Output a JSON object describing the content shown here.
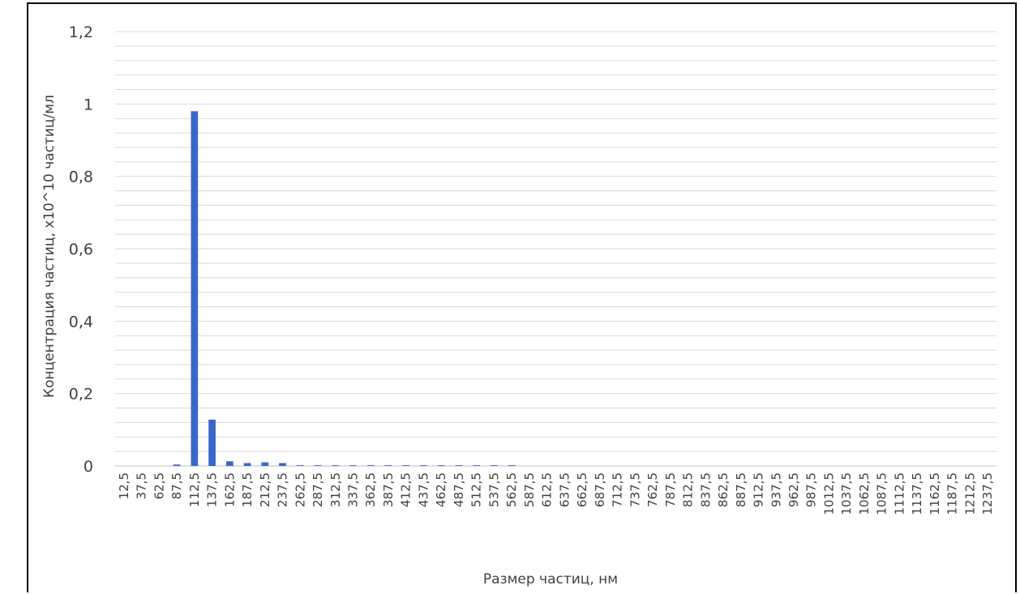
{
  "chart_data": {
    "type": "bar",
    "title": "",
    "xlabel": "Размер частиц, нм",
    "ylabel": "Концентрация частиц, x10^10 частиц/мл",
    "ylim": [
      0,
      1.2
    ],
    "y_ticks": [
      "0",
      "0,2",
      "0,4",
      "0,6",
      "0,8",
      "1",
      "1,2"
    ],
    "y_tick_values": [
      0,
      0.2,
      0.4,
      0.6,
      0.8,
      1.0,
      1.2
    ],
    "minor_gridline_step": 0.04,
    "grid": true,
    "bar_color": "#3a66c8",
    "grid_color": "#d9d9d9",
    "categories": [
      "12,5",
      "37,5",
      "62,5",
      "87,5",
      "112,5",
      "137,5",
      "162,5",
      "187,5",
      "212,5",
      "237,5",
      "262,5",
      "287,5",
      "312,5",
      "337,5",
      "362,5",
      "387,5",
      "412,5",
      "437,5",
      "462,5",
      "487,5",
      "512,5",
      "537,5",
      "562,5",
      "587,5",
      "612,5",
      "637,5",
      "662,5",
      "687,5",
      "712,5",
      "737,5",
      "762,5",
      "787,5",
      "812,5",
      "837,5",
      "862,5",
      "887,5",
      "912,5",
      "937,5",
      "962,5",
      "987,5",
      "1012,5",
      "1037,5",
      "1062,5",
      "1087,5",
      "1112,5",
      "1137,5",
      "1162,5",
      "1187,5",
      "1212,5",
      "1237,5"
    ],
    "values": [
      0,
      0,
      0,
      0.004,
      0.98,
      0.128,
      0.013,
      0.008,
      0.01,
      0.008,
      0.002,
      0.002,
      0.002,
      0.002,
      0.002,
      0.002,
      0.002,
      0.002,
      0.002,
      0.002,
      0.002,
      0.002,
      0.002,
      0,
      0,
      0,
      0,
      0,
      0,
      0,
      0,
      0,
      0,
      0,
      0,
      0,
      0,
      0,
      0,
      0,
      0,
      0,
      0,
      0,
      0,
      0,
      0,
      0,
      0,
      0
    ]
  }
}
